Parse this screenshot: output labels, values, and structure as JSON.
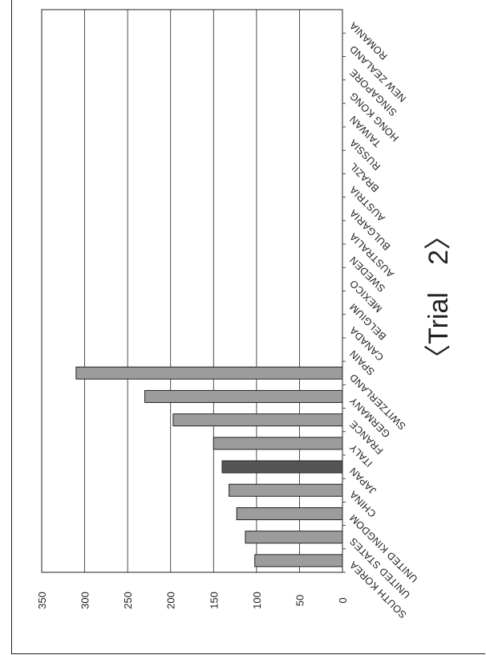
{
  "chart_data": {
    "type": "bar",
    "title": "",
    "xlabel": "",
    "ylabel": "",
    "ylim": [
      0,
      350
    ],
    "y_ticks": [
      "0",
      "50",
      "100",
      "150",
      "200",
      "250",
      "300",
      "350"
    ],
    "categories": [
      "SOUTH KOREA",
      "UNITED STATES",
      "UNITED KINGDOM",
      "CHINA",
      "JAPAN",
      "ITALY",
      "FRANCE",
      "GERMANY",
      "SWITZERLAND",
      "SPAIN",
      "CANADA",
      "BELGIUM",
      "MEXICO",
      "SWEDEN",
      "AUSTRALIA",
      "BULGARIA",
      "AUSTRIA",
      "BRAZIL",
      "RUSSIA",
      "TAIWAN",
      "HONG KONG",
      "SINGAPORE",
      "NEW ZEALAND",
      "ROMANIA"
    ],
    "values": [
      102,
      113,
      123,
      132,
      140,
      150,
      197,
      230,
      310,
      0,
      0,
      0,
      0,
      0,
      0,
      0,
      0,
      0,
      0,
      0,
      0,
      0,
      0,
      0
    ],
    "grid": true,
    "orientation": "rotated-90"
  },
  "annotation": {
    "trial_label": "〈Trial　2〉"
  },
  "colors": {
    "bar_fill": "#9c9c9c",
    "bar_dark": "#555555",
    "bar_stroke": "#222222",
    "grid": "#222222"
  }
}
